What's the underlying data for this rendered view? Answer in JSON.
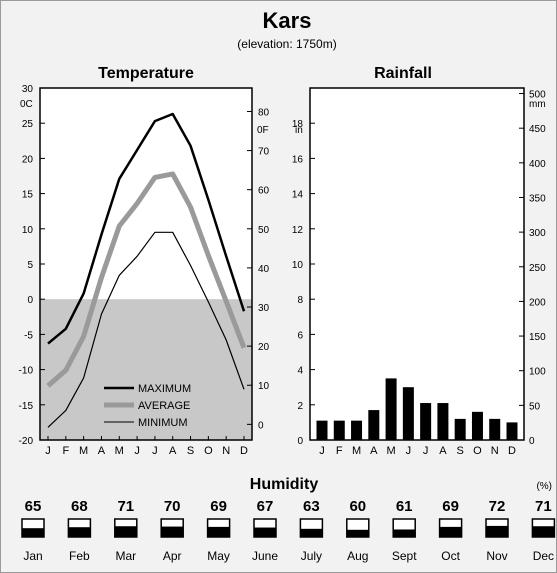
{
  "header": {
    "title": "Kars",
    "subtitle": "(elevation: 1750m)"
  },
  "chart_data": [
    {
      "type": "line",
      "title": "Temperature",
      "units": {
        "left": "0C",
        "right": "0F"
      },
      "x": [
        "J",
        "F",
        "M",
        "A",
        "M",
        "J",
        "J",
        "A",
        "S",
        "O",
        "N",
        "D"
      ],
      "ylim": [
        -20,
        30
      ],
      "yticks_left": [
        -20,
        -15,
        -10,
        -5,
        0,
        5,
        10,
        15,
        20,
        25,
        30
      ],
      "yticks_right": [
        0,
        10,
        20,
        30,
        40,
        50,
        60,
        70,
        80
      ],
      "legend_position": "bottom-center",
      "shading": "below 0",
      "series": [
        {
          "name": "MAXIMUM",
          "values": [
            -6.3,
            -4.2,
            0.8,
            9.2,
            17.1,
            21.2,
            25.3,
            26.3,
            21.8,
            14.1,
            6.1,
            -1.7
          ]
        },
        {
          "name": "AVERAGE",
          "values": [
            -12.3,
            -10.1,
            -5.3,
            3.1,
            10.4,
            13.6,
            17.3,
            17.8,
            13.1,
            6.2,
            -0.3,
            -6.9
          ]
        },
        {
          "name": "MINIMUM",
          "values": [
            -18.2,
            -15.8,
            -11.2,
            -2.1,
            3.4,
            6.1,
            9.5,
            9.5,
            4.8,
            -0.4,
            -5.8,
            -12.8
          ]
        }
      ]
    },
    {
      "type": "bar",
      "title": "Rainfall",
      "units": {
        "left": "in",
        "right": "mm"
      },
      "categories": [
        "J",
        "F",
        "M",
        "A",
        "M",
        "J",
        "J",
        "A",
        "S",
        "O",
        "N",
        "D"
      ],
      "values": [
        1.1,
        1.1,
        1.1,
        1.7,
        3.5,
        3.0,
        2.1,
        2.1,
        1.2,
        1.6,
        1.2,
        1.0
      ],
      "ylim": [
        0,
        20
      ],
      "yticks_left": [
        0,
        2,
        4,
        6,
        8,
        10,
        12,
        14,
        16,
        18
      ],
      "yticks_right": [
        0,
        50,
        100,
        150,
        200,
        250,
        300,
        350,
        400,
        450,
        500
      ]
    }
  ],
  "humidity": {
    "title": "Humidity",
    "unit": "(%)",
    "months": [
      "Jan",
      "Feb",
      "Mar",
      "Apr",
      "May",
      "June",
      "July",
      "Aug",
      "Sept",
      "Oct",
      "Nov",
      "Dec"
    ],
    "values": [
      "65",
      "68",
      "71",
      "70",
      "69",
      "67",
      "63",
      "60",
      "61",
      "69",
      "72",
      "71"
    ]
  },
  "colors": {
    "background": "#f2f2f2",
    "plot": "#ffffff",
    "below_zero": "#c8c8c8",
    "maximum": "#000000",
    "average": "#9a9a9a",
    "minimum": "#000000",
    "bars": "#000000"
  }
}
